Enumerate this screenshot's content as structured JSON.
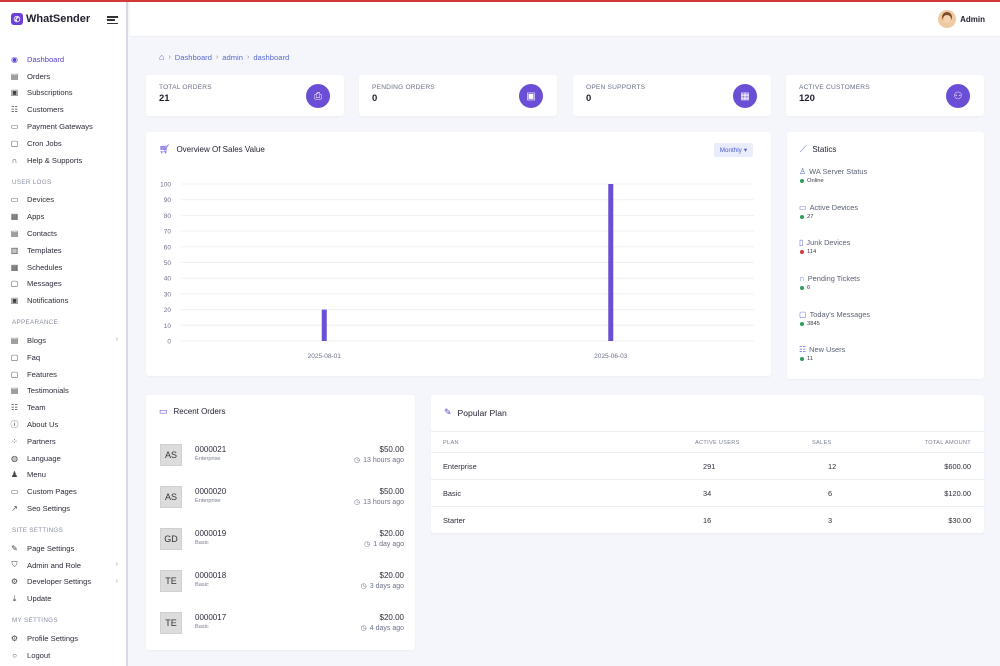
{
  "brand": {
    "name": "WhatSender",
    "logo": "whatsapp-logo"
  },
  "topbar": {
    "user_name": "Admin"
  },
  "breadcrumb": [
    "Dashboard",
    "admin",
    "dashboard"
  ],
  "sidebar": {
    "main": [
      {
        "label": "Dashboard",
        "icon": "dashboard-icon",
        "glyph": "◉",
        "active": true
      },
      {
        "label": "Orders",
        "icon": "orders-icon",
        "glyph": "▤"
      },
      {
        "label": "Subscriptions",
        "icon": "subscriptions-icon",
        "glyph": "▣"
      },
      {
        "label": "Customers",
        "icon": "customers-icon",
        "glyph": "☷"
      },
      {
        "label": "Payment Gateways",
        "icon": "payment-icon",
        "glyph": "▭"
      },
      {
        "label": "Cron Jobs",
        "icon": "cron-icon",
        "glyph": "▢"
      },
      {
        "label": "Help & Supports",
        "icon": "headset-icon",
        "glyph": "∩"
      }
    ],
    "user_logs_title": "USER LOGS",
    "user_logs": [
      {
        "label": "Devices",
        "icon": "devices-icon",
        "glyph": "▭"
      },
      {
        "label": "Apps",
        "icon": "apps-icon",
        "glyph": "▦"
      },
      {
        "label": "Contacts",
        "icon": "contacts-icon",
        "glyph": "▤"
      },
      {
        "label": "Templates",
        "icon": "templates-icon",
        "glyph": "▥"
      },
      {
        "label": "Schedules",
        "icon": "calendar-icon",
        "glyph": "▦"
      },
      {
        "label": "Messages",
        "icon": "messages-icon",
        "glyph": "▢"
      },
      {
        "label": "Notifications",
        "icon": "notifications-icon",
        "glyph": "▣"
      }
    ],
    "appearance_title": "APPEARANCE",
    "appearance": [
      {
        "label": "Blogs",
        "icon": "blogs-icon",
        "glyph": "▤",
        "chevron": true
      },
      {
        "label": "Faq",
        "icon": "faq-icon",
        "glyph": "▢"
      },
      {
        "label": "Features",
        "icon": "features-icon",
        "glyph": "▢"
      },
      {
        "label": "Testimonials",
        "icon": "testimonials-icon",
        "glyph": "▤"
      },
      {
        "label": "Team",
        "icon": "team-icon",
        "glyph": "☷"
      },
      {
        "label": "About Us",
        "icon": "about-icon",
        "glyph": "ⓘ"
      },
      {
        "label": "Partners",
        "icon": "partners-icon",
        "glyph": "⁘"
      },
      {
        "label": "Language",
        "icon": "globe-icon",
        "glyph": "◍"
      },
      {
        "label": "Menu",
        "icon": "menu-icon",
        "glyph": "♟"
      },
      {
        "label": "Custom Pages",
        "icon": "pages-icon",
        "glyph": "▭"
      },
      {
        "label": "Seo Settings",
        "icon": "seo-icon",
        "glyph": "↗"
      }
    ],
    "site_settings_title": "SITE SETTINGS",
    "site_settings": [
      {
        "label": "Page Settings",
        "icon": "page-settings-icon",
        "glyph": "✎"
      },
      {
        "label": "Admin and Role",
        "icon": "admin-role-icon",
        "glyph": "⛉",
        "chevron": true
      },
      {
        "label": "Developer Settings",
        "icon": "developer-icon",
        "glyph": "⚙",
        "chevron": true
      },
      {
        "label": "Update",
        "icon": "update-icon",
        "glyph": "⤓"
      }
    ],
    "my_settings_title": "MY SETTINGS",
    "my_settings": [
      {
        "label": "Profile Settings",
        "icon": "profile-icon",
        "glyph": "⚙"
      },
      {
        "label": "Logout",
        "icon": "logout-icon",
        "glyph": "○"
      }
    ]
  },
  "stats": [
    {
      "label": "TOTAL ORDERS",
      "value": "21",
      "icon": "printer-icon",
      "glyph": "⎙"
    },
    {
      "label": "PENDING ORDERS",
      "value": "0",
      "icon": "box-icon",
      "glyph": "▣"
    },
    {
      "label": "OPEN SUPPORTS",
      "value": "0",
      "icon": "calendar-icon",
      "glyph": "▦"
    },
    {
      "label": "ACTIVE CUSTOMERS",
      "value": "120",
      "icon": "users-icon",
      "glyph": "⚇"
    }
  ],
  "sales_chart": {
    "title": "Overview Of Sales Value",
    "filter_label": "Monthly",
    "accent": "#6a4fd6"
  },
  "chart_data": {
    "type": "bar",
    "categories": [
      "2025-08-01",
      "2025-06-03"
    ],
    "values": [
      20,
      100
    ],
    "yticks": [
      0,
      10,
      20,
      30,
      40,
      50,
      60,
      70,
      80,
      90,
      100
    ],
    "ylim": [
      0,
      100
    ],
    "title": "Overview Of Sales Value",
    "xlabel": "",
    "ylabel": "",
    "grid": true,
    "color": "#6a4fd6"
  },
  "statics": {
    "title": "Statics",
    "items": [
      {
        "label": "WA Server Status",
        "value": "Online",
        "dot": "#2e9e5b",
        "icon": "server-icon",
        "glyph": "♙"
      },
      {
        "label": "Active Devices",
        "value": "27",
        "dot": "#2e9e5b",
        "icon": "devices-icon",
        "glyph": "▭"
      },
      {
        "label": "Junk Devices",
        "value": "114",
        "dot": "#d23a3a",
        "icon": "trash-icon",
        "glyph": "▯"
      },
      {
        "label": "Pending Tickets",
        "value": "6",
        "dot": "#2e9e5b",
        "icon": "headset-icon",
        "glyph": "∩"
      },
      {
        "label": "Today's Messages",
        "value": "3845",
        "dot": "#2e9e5b",
        "icon": "messages-icon",
        "glyph": "▢"
      },
      {
        "label": "New Users",
        "value": "11",
        "dot": "#2e9e5b",
        "icon": "users-icon",
        "glyph": "☷"
      }
    ]
  },
  "recent_orders": {
    "title": "Recent Orders",
    "items": [
      {
        "initials": "AS",
        "id": "0000021",
        "plan": "Enterprise",
        "amount": "$50.00",
        "time": "13 hours ago"
      },
      {
        "initials": "AS",
        "id": "0000020",
        "plan": "Enterprise",
        "amount": "$50.00",
        "time": "13 hours ago"
      },
      {
        "initials": "GD",
        "id": "0000019",
        "plan": "Basic",
        "amount": "$20.00",
        "time": "1 day ago"
      },
      {
        "initials": "TE",
        "id": "0000018",
        "plan": "Basic",
        "amount": "$20.00",
        "time": "3 days ago"
      },
      {
        "initials": "TE",
        "id": "0000017",
        "plan": "Basic",
        "amount": "$20.00",
        "time": "4 days ago"
      }
    ]
  },
  "popular_plan": {
    "title": "Popular Plan",
    "columns": [
      "PLAN",
      "ACTIVE USERS",
      "SALES",
      "TOTAL AMOUNT"
    ],
    "rows": [
      {
        "plan": "Enterprise",
        "active_users": "291",
        "sales": "12",
        "total": "$600.00"
      },
      {
        "plan": "Basic",
        "active_users": "34",
        "sales": "6",
        "total": "$120.00"
      },
      {
        "plan": "Starter",
        "active_users": "16",
        "sales": "3",
        "total": "$30.00"
      }
    ]
  }
}
